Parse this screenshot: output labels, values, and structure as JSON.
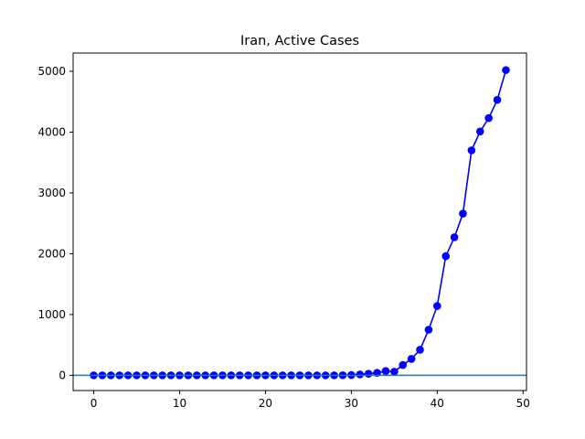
{
  "chart_data": {
    "type": "line",
    "title": "Iran, Active Cases",
    "xlabel": "",
    "ylabel": "",
    "xlim": [
      -2.4,
      50.4
    ],
    "ylim": [
      -250,
      5300
    ],
    "x_ticks": [
      0,
      10,
      20,
      30,
      40,
      50
    ],
    "y_ticks": [
      0,
      1000,
      2000,
      3000,
      4000,
      5000
    ],
    "grid": false,
    "legend": "none",
    "baseline_y": 0,
    "series": [
      {
        "color": "#0000ff",
        "marker": "circle",
        "x": [
          0,
          1,
          2,
          3,
          4,
          5,
          6,
          7,
          8,
          9,
          10,
          11,
          12,
          13,
          14,
          15,
          16,
          17,
          18,
          19,
          20,
          21,
          22,
          23,
          24,
          25,
          26,
          27,
          28,
          29,
          30,
          31,
          32,
          33,
          34,
          35,
          36,
          37,
          38,
          39,
          40,
          41,
          42,
          43,
          44,
          45,
          46,
          47,
          48
        ],
        "values": [
          0,
          0,
          0,
          0,
          0,
          0,
          0,
          0,
          0,
          0,
          0,
          0,
          0,
          0,
          0,
          0,
          0,
          0,
          0,
          0,
          0,
          0,
          0,
          0,
          0,
          0,
          0,
          0,
          0,
          2,
          5,
          15,
          25,
          40,
          70,
          60,
          170,
          270,
          420,
          750,
          1140,
          1960,
          2270,
          2660,
          3700,
          4010,
          4230,
          4530,
          5020
        ]
      }
    ],
    "baseline_color": "#1f77b4"
  }
}
